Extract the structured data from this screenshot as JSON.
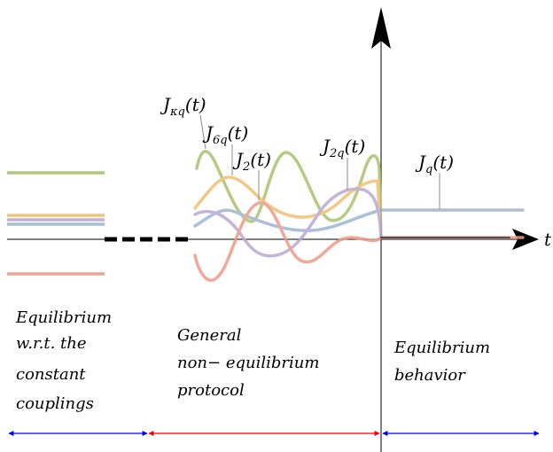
{
  "axis": {
    "t_label": "t"
  },
  "coupling_labels": {
    "j_kq": {
      "base": "J",
      "sub": "κq",
      "arg": "(t)"
    },
    "j_6q": {
      "base": "J",
      "sub": "6q",
      "arg": "(t)"
    },
    "j_2": {
      "base": "J",
      "sub": "2",
      "arg": "(t)"
    },
    "j_2q": {
      "base": "J",
      "sub": "2q",
      "arg": "(t)"
    },
    "j_q": {
      "base": "J",
      "sub": "q",
      "arg": "(t)"
    }
  },
  "regions": {
    "left": {
      "lines": [
        "Equilibrium",
        "w.r.t. the",
        "constant",
        "couplings"
      ]
    },
    "middle": {
      "lines": [
        "General",
        "non− equilibrium",
        "protocol"
      ]
    },
    "right": {
      "lines": [
        "Equilibrium",
        "behavior"
      ]
    }
  },
  "colors": {
    "green": "#a9c26e",
    "orange": "#f0bf6e",
    "blue": "#9db5d2",
    "purple": "#b9a9d3",
    "red": "#ee9a88",
    "arrow_blue": "#0000ee",
    "arrow_red": "#ee0000"
  }
}
